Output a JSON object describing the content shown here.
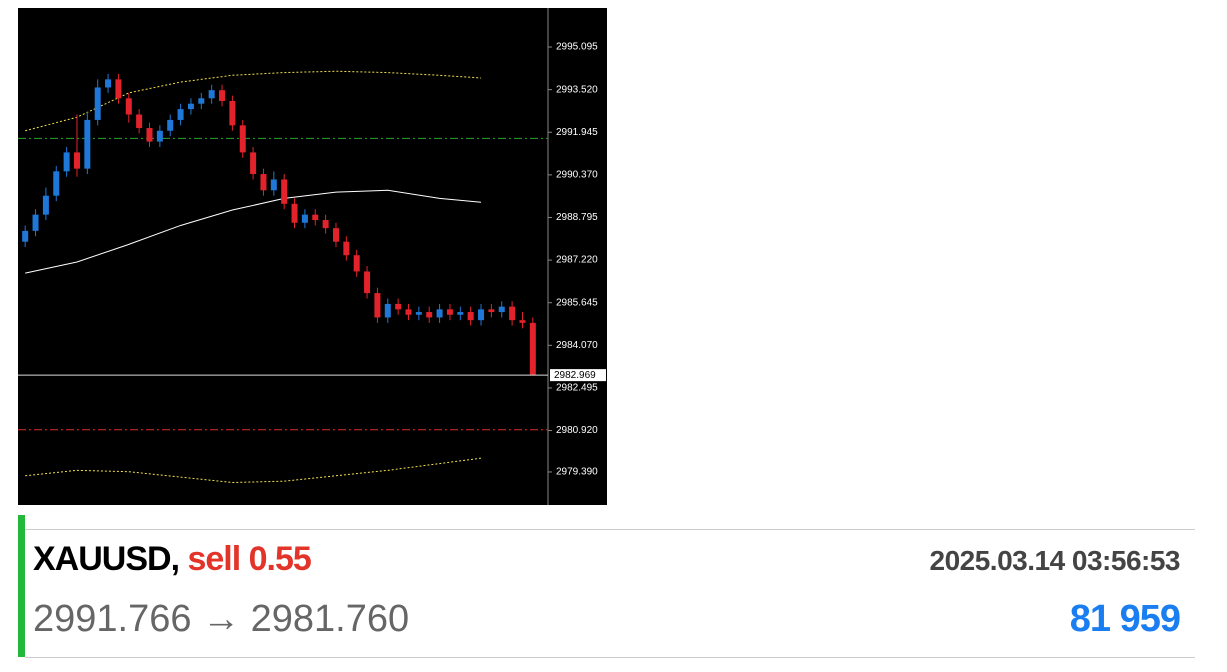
{
  "chart_data": {
    "type": "candlestick",
    "up_color": "#1f78d8",
    "down_color": "#e3232c",
    "open": [
      2987.9,
      2988.3,
      2988.9,
      2989.6,
      2990.5,
      2991.2,
      2990.6,
      2992.4,
      2993.6,
      2993.9,
      2993.2,
      2992.6,
      2992.1,
      2991.6,
      2992.0,
      2992.4,
      2992.8,
      2993.0,
      2993.2,
      2993.5,
      2993.1,
      2992.2,
      2991.2,
      2990.4,
      2989.8,
      2990.2,
      2989.3,
      2988.6,
      2988.9,
      2988.7,
      2988.4,
      2987.9,
      2987.4,
      2986.8,
      2986.0,
      2985.1,
      2985.6,
      2985.4,
      2985.2,
      2985.3,
      2985.1,
      2985.4,
      2985.2,
      2985.3,
      2985.0,
      2985.4,
      2985.3,
      2985.5,
      2985.0,
      2984.9
    ],
    "high": [
      2988.5,
      2989.1,
      2989.9,
      2990.7,
      2991.4,
      2992.6,
      2992.7,
      2993.9,
      2994.1,
      2994.1,
      2993.4,
      2992.8,
      2992.3,
      2992.2,
      2992.6,
      2993.0,
      2993.2,
      2993.4,
      2993.7,
      2993.7,
      2993.3,
      2992.4,
      2991.4,
      2990.6,
      2990.5,
      2990.4,
      2989.5,
      2989.1,
      2989.1,
      2988.9,
      2988.6,
      2988.1,
      2987.6,
      2987.0,
      2986.2,
      2985.8,
      2985.8,
      2985.6,
      2985.5,
      2985.5,
      2985.6,
      2985.6,
      2985.5,
      2985.5,
      2985.6,
      2985.6,
      2985.7,
      2985.7,
      2985.3,
      2985.1
    ],
    "low": [
      2987.7,
      2988.1,
      2988.7,
      2989.4,
      2990.3,
      2990.3,
      2990.4,
      2992.2,
      2993.4,
      2993.0,
      2992.3,
      2991.9,
      2991.4,
      2991.4,
      2991.8,
      2992.2,
      2992.6,
      2992.8,
      2993.0,
      2992.9,
      2992.0,
      2991.0,
      2990.2,
      2989.6,
      2989.6,
      2989.1,
      2988.4,
      2988.4,
      2988.5,
      2988.2,
      2987.7,
      2987.2,
      2986.6,
      2985.8,
      2984.9,
      2984.9,
      2985.2,
      2985.0,
      2985.0,
      2984.9,
      2984.9,
      2985.0,
      2985.0,
      2984.8,
      2984.8,
      2985.1,
      2985.1,
      2984.8,
      2984.7,
      2982.969
    ],
    "close": [
      2988.3,
      2988.9,
      2989.6,
      2990.5,
      2991.2,
      2990.6,
      2992.4,
      2993.6,
      2993.9,
      2993.2,
      2992.6,
      2992.1,
      2991.6,
      2992.0,
      2992.4,
      2992.8,
      2993.0,
      2993.2,
      2993.5,
      2993.1,
      2992.2,
      2991.2,
      2990.4,
      2989.8,
      2990.2,
      2989.3,
      2988.6,
      2988.9,
      2988.7,
      2988.4,
      2987.9,
      2987.4,
      2986.8,
      2986.0,
      2985.1,
      2985.6,
      2985.4,
      2985.2,
      2985.3,
      2985.1,
      2985.4,
      2985.2,
      2985.3,
      2985.0,
      2985.4,
      2985.3,
      2985.5,
      2985.0,
      2984.9,
      2982.969
    ],
    "lines": [
      {
        "color": "#f2e24a",
        "dash": "2 2",
        "x": [
          0,
          5,
          10,
          15,
          20,
          25,
          30,
          35,
          40,
          44
        ],
        "values": [
          2992.0,
          2992.5,
          2993.4,
          2993.8,
          2994.05,
          2994.15,
          2994.2,
          2994.15,
          2994.05,
          2993.95
        ]
      },
      {
        "color": "#ffffff",
        "dash": "none",
        "x": [
          0,
          5,
          10,
          15,
          20,
          25,
          30,
          35,
          40,
          44
        ],
        "values": [
          2986.74,
          2987.15,
          2987.8,
          2988.5,
          2989.07,
          2989.5,
          2989.73,
          2989.8,
          2989.5,
          2989.36
        ]
      },
      {
        "color": "#f2e24a",
        "dash": "2 2",
        "x": [
          0,
          5,
          10,
          15,
          20,
          25,
          30,
          35,
          40,
          44
        ],
        "values": [
          2979.25,
          2979.45,
          2979.4,
          2979.2,
          2979.0,
          2979.05,
          2979.25,
          2979.45,
          2979.7,
          2979.9
        ]
      }
    ],
    "levels": [
      {
        "value": 2991.72,
        "color": "#2aa52a"
      },
      {
        "value": 2980.95,
        "color": "#d8322a"
      }
    ],
    "ylim": [
      2978.169,
      2996.537
    ],
    "yticks": [
      2995.095,
      {
        "value": 2993.52,
        "label": "2993.520"
      },
      2991.945,
      {
        "value": 2990.37,
        "label": "2990.370"
      },
      2988.795,
      {
        "value": 2987.22,
        "label": "2987.220"
      },
      2985.645,
      {
        "value": 2984.07,
        "label": "2984.070"
      },
      2982.495,
      {
        "value": 2980.92,
        "label": "2980.920"
      },
      {
        "value": 2979.39,
        "label": "2979.390"
      }
    ]
  },
  "trade": {
    "symbol": "XAUUSD,",
    "side": "sell 0.55",
    "time": "2025.03.14 03:56:53",
    "open_price": "2991.766",
    "arrow": "→",
    "close_price": "2981.760",
    "profit": "81 959"
  }
}
